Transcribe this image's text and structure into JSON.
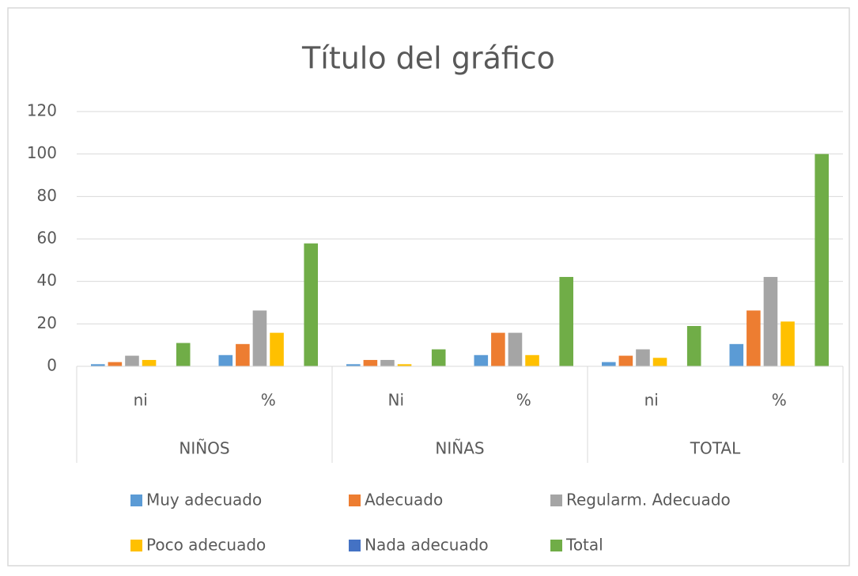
{
  "chart_data": {
    "type": "bar",
    "title": "Título del gráfico",
    "categories": [
      "ni",
      "%",
      "Ni",
      "%",
      "ni",
      "%"
    ],
    "groups": [
      "NIÑOS",
      "NIÑAS",
      "TOTAL"
    ],
    "series": [
      {
        "name": "Muy adecuado",
        "color": "#5b9bd5",
        "values": [
          1,
          5.3,
          1,
          5.3,
          2,
          10.5
        ]
      },
      {
        "name": "Adecuado",
        "color": "#ed7d31",
        "values": [
          2,
          10.5,
          3,
          15.8,
          5,
          26.3
        ]
      },
      {
        "name": "Regularm. Adecuado",
        "color": "#a5a5a5",
        "values": [
          5,
          26.3,
          3,
          15.8,
          8,
          42.1
        ]
      },
      {
        "name": "Poco adecuado",
        "color": "#ffc000",
        "values": [
          3,
          15.8,
          1,
          5.3,
          4,
          21.1
        ]
      },
      {
        "name": "Nada adecuado",
        "color": "#4472c4",
        "values": [
          0,
          0,
          0,
          0,
          0,
          0
        ]
      },
      {
        "name": "Total",
        "color": "#70ad47",
        "values": [
          11,
          57.9,
          8,
          42.1,
          19,
          100
        ]
      }
    ],
    "ylim": [
      0,
      120
    ],
    "yticks": [
      0,
      20,
      40,
      60,
      80,
      100,
      120
    ],
    "grid": true,
    "legend": "bottom"
  }
}
